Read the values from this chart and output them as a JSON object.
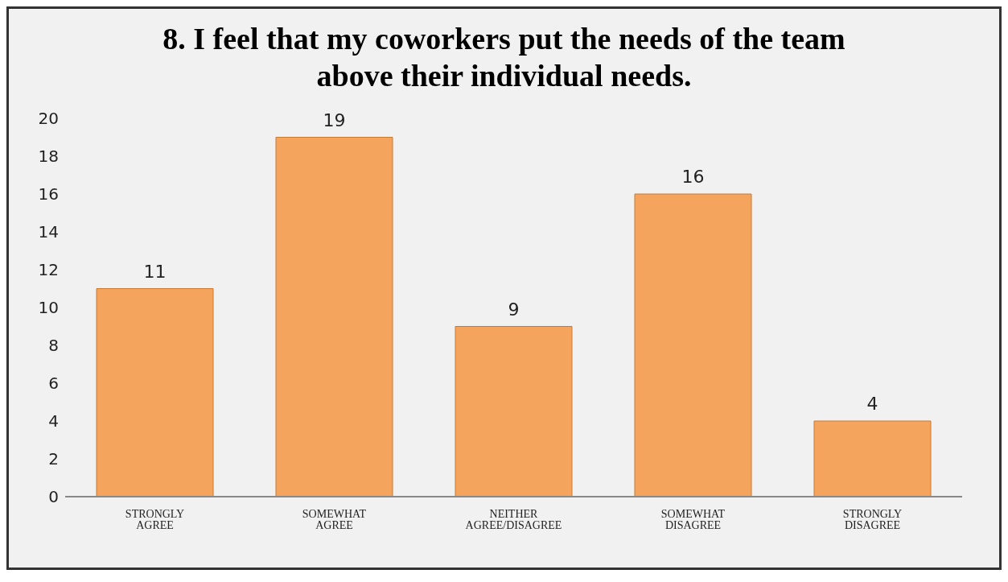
{
  "chart_data": {
    "type": "bar",
    "title": "8. I feel that my coworkers put the needs of the team above their individual needs.",
    "categories": [
      "STRONGLY AGREE",
      "SOMEWHAT AGREE",
      "NEITHER AGREE/DISAGREE",
      "SOMEWHAT DISAGREE",
      "STRONGLY DISAGREE"
    ],
    "values": [
      11,
      19,
      9,
      16,
      4
    ],
    "color": "#f5a45e",
    "ylim": [
      0,
      20
    ],
    "yticks": [
      0,
      2,
      4,
      6,
      8,
      10,
      12,
      14,
      16,
      18,
      20
    ],
    "grid": false,
    "data_labels": true
  }
}
